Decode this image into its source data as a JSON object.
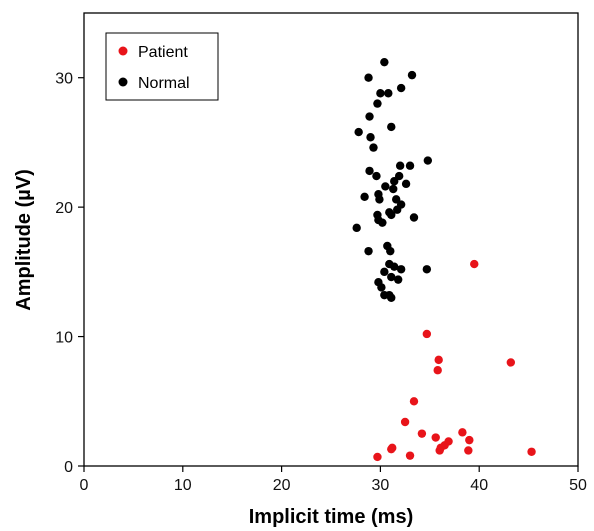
{
  "chart_data": {
    "type": "scatter",
    "title": "",
    "xlabel": "Implicit time (ms)",
    "ylabel": "Amplitude (µV)",
    "xlim": [
      0,
      50
    ],
    "ylim": [
      0,
      35
    ],
    "xticks": [
      0,
      10,
      20,
      30,
      40,
      50
    ],
    "yticks": [
      0,
      10,
      20,
      30
    ],
    "grid": false,
    "legend_position": "top-left",
    "series": [
      {
        "name": "Patient",
        "color": "#e8141a",
        "points": [
          [
            39.5,
            15.6
          ],
          [
            34.7,
            10.2
          ],
          [
            35.9,
            8.2
          ],
          [
            43.2,
            8.0
          ],
          [
            35.8,
            7.4
          ],
          [
            33.4,
            5.0
          ],
          [
            32.5,
            3.4
          ],
          [
            38.3,
            2.6
          ],
          [
            34.2,
            2.5
          ],
          [
            35.6,
            2.2
          ],
          [
            39.0,
            2.0
          ],
          [
            36.9,
            1.9
          ],
          [
            36.5,
            1.6
          ],
          [
            36.1,
            1.4
          ],
          [
            31.2,
            1.4
          ],
          [
            31.1,
            1.3
          ],
          [
            36.0,
            1.2
          ],
          [
            38.9,
            1.2
          ],
          [
            45.3,
            1.1
          ],
          [
            33.0,
            0.8
          ],
          [
            29.7,
            0.7
          ]
        ]
      },
      {
        "name": "Normal",
        "color": "#000000",
        "points": [
          [
            30.4,
            31.2
          ],
          [
            33.2,
            30.2
          ],
          [
            28.8,
            30.0
          ],
          [
            32.1,
            29.2
          ],
          [
            30.8,
            28.8
          ],
          [
            30.0,
            28.8
          ],
          [
            29.7,
            28.0
          ],
          [
            28.9,
            27.0
          ],
          [
            31.1,
            26.2
          ],
          [
            27.8,
            25.8
          ],
          [
            29.0,
            25.4
          ],
          [
            29.3,
            24.6
          ],
          [
            34.8,
            23.6
          ],
          [
            32.0,
            23.2
          ],
          [
            33.0,
            23.2
          ],
          [
            28.9,
            22.8
          ],
          [
            31.9,
            22.4
          ],
          [
            29.6,
            22.4
          ],
          [
            31.4,
            22.0
          ],
          [
            32.6,
            21.8
          ],
          [
            30.5,
            21.6
          ],
          [
            31.3,
            21.4
          ],
          [
            29.8,
            21.0
          ],
          [
            31.6,
            20.6
          ],
          [
            28.4,
            20.8
          ],
          [
            29.9,
            20.6
          ],
          [
            32.1,
            20.2
          ],
          [
            31.7,
            19.8
          ],
          [
            30.9,
            19.6
          ],
          [
            29.7,
            19.4
          ],
          [
            31.1,
            19.4
          ],
          [
            33.4,
            19.2
          ],
          [
            29.8,
            19.0
          ],
          [
            30.2,
            18.8
          ],
          [
            27.6,
            18.4
          ],
          [
            30.7,
            17.0
          ],
          [
            28.8,
            16.6
          ],
          [
            31.0,
            16.6
          ],
          [
            30.9,
            15.6
          ],
          [
            31.4,
            15.4
          ],
          [
            34.7,
            15.2
          ],
          [
            32.1,
            15.2
          ],
          [
            30.4,
            15.0
          ],
          [
            31.1,
            14.6
          ],
          [
            31.8,
            14.4
          ],
          [
            29.8,
            14.2
          ],
          [
            30.1,
            13.8
          ],
          [
            30.9,
            13.2
          ],
          [
            30.4,
            13.2
          ],
          [
            31.1,
            13.0
          ]
        ]
      }
    ]
  }
}
